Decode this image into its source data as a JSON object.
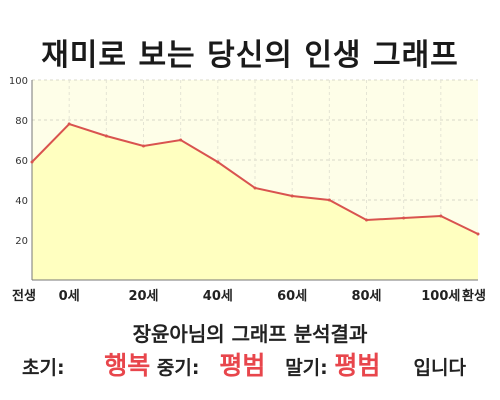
{
  "title": "재미로 보는 당신의 인생 그래프",
  "chart_data": {
    "type": "area",
    "categories": [
      "전생",
      "0세",
      "",
      "20세",
      "",
      "40세",
      "",
      "60세",
      "",
      "80세",
      "",
      "100세",
      "환생"
    ],
    "x_tick_labels": [
      "전생",
      "0세",
      "20세",
      "40세",
      "60세",
      "80세",
      "100세",
      "환생"
    ],
    "values": [
      59,
      78,
      72,
      67,
      70,
      59,
      46,
      42,
      40,
      30,
      31,
      32,
      23
    ],
    "ylim": [
      0,
      100
    ],
    "y_ticks": [
      "20",
      "40",
      "60",
      "80",
      "100"
    ],
    "grid": true,
    "colors": {
      "fill": "#ffffc0",
      "line": "#d9534f",
      "plot_bg": "#fefee8"
    }
  },
  "summary": "장윤아님의 그래프 분석결과",
  "verdict": {
    "early_label": "초기:",
    "early_value": "행복",
    "mid_label": "중기:",
    "mid_value": "평범",
    "late_label": "말기:",
    "late_value": "평범",
    "suffix": "입니다"
  }
}
